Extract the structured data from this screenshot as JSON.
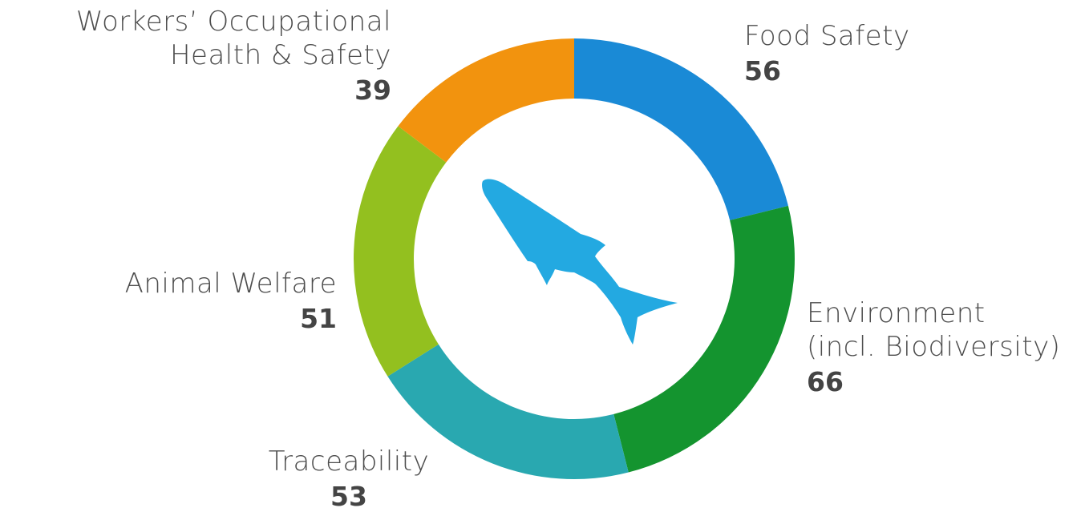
{
  "chart_data": {
    "type": "pie",
    "donut": true,
    "slices": [
      {
        "label": "Food Safety",
        "value": 56,
        "color": "#1a8ad6"
      },
      {
        "label": "Environment\n(incl. Biodiversity)",
        "value": 66,
        "color": "#14942f"
      },
      {
        "label": "Traceability",
        "value": 53,
        "color": "#29a8b0"
      },
      {
        "label": "Animal Welfare",
        "value": 51,
        "color": "#93c01f"
      },
      {
        "label": "Workers’ Occupational\nHealth & Safety",
        "value": 39,
        "color": "#f2930e"
      }
    ],
    "center_icon": "fish-icon",
    "center_icon_color": "#23a9e1",
    "label_text_color": "#4d4d4d"
  }
}
